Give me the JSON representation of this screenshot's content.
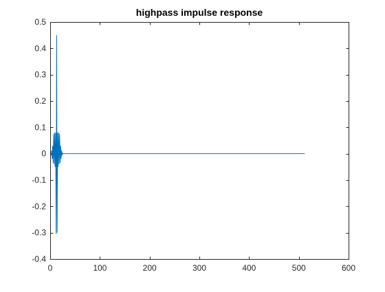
{
  "chart_data": {
    "type": "line",
    "title": "highpass impulse response",
    "xlabel": "",
    "ylabel": "",
    "xlim": [
      0,
      600
    ],
    "ylim": [
      -0.4,
      0.5
    ],
    "xticks": [
      0,
      100,
      200,
      300,
      400,
      500,
      600
    ],
    "yticks": [
      -0.4,
      -0.3,
      -0.2,
      -0.1,
      0,
      0.1,
      0.2,
      0.3,
      0.4,
      0.5
    ],
    "xtick_labels": [
      "0",
      "100",
      "200",
      "300",
      "400",
      "500",
      "600"
    ],
    "ytick_labels": [
      "-0.4",
      "-0.3",
      "-0.2",
      "-0.1",
      "0",
      "0.1",
      "0.2",
      "0.3",
      "0.4",
      "0.5"
    ],
    "grid": false,
    "box": true,
    "series": [
      {
        "color": "#0072bd",
        "x": [
          1,
          2,
          3,
          4,
          5,
          6,
          7,
          8,
          9,
          10,
          11,
          12,
          13,
          14,
          15,
          16,
          17,
          18,
          19,
          20,
          21,
          22,
          23,
          24,
          25,
          26,
          512
        ],
        "y": [
          0.002,
          -0.006,
          0.012,
          -0.02,
          0.03,
          -0.035,
          0.075,
          -0.04,
          0.08,
          -0.05,
          0.08,
          -0.305,
          0.45,
          -0.3,
          0.08,
          -0.05,
          0.08,
          -0.04,
          0.075,
          -0.035,
          0.03,
          -0.02,
          0.012,
          -0.006,
          0.002,
          0,
          0
        ]
      }
    ]
  }
}
